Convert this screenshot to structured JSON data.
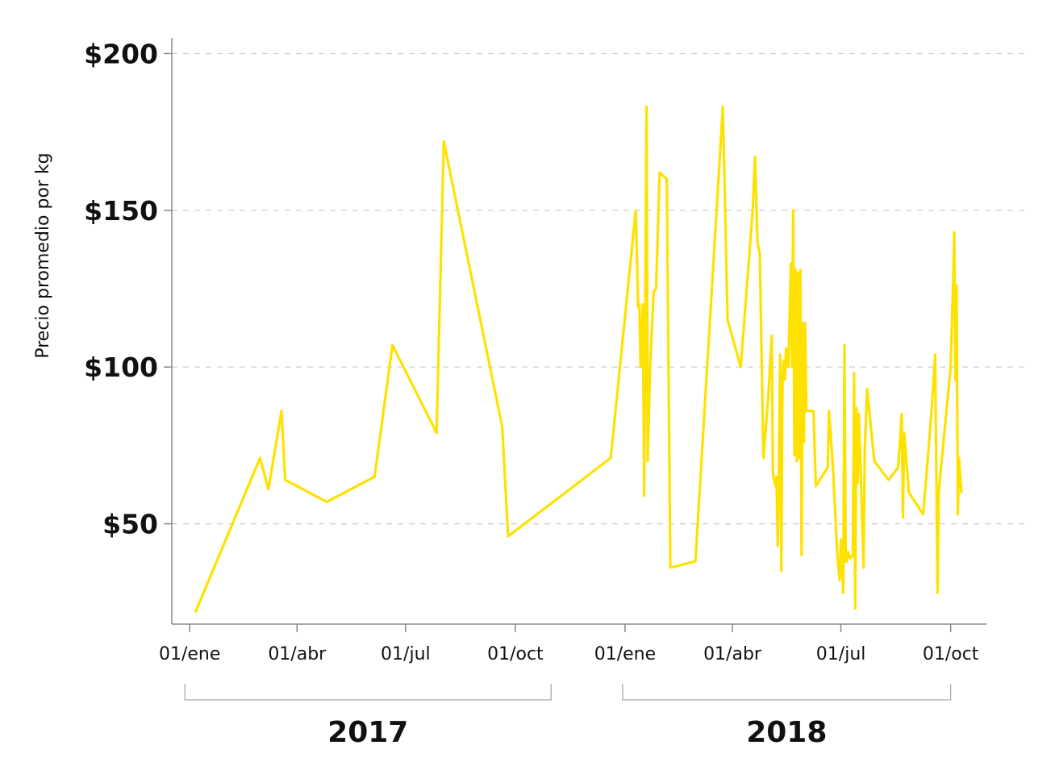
{
  "chart_data": {
    "type": "line",
    "title": "",
    "xlabel": "",
    "ylabel": "Precio promedio por kg",
    "y_ticks": [
      {
        "value": 200,
        "label": "$200"
      },
      {
        "value": 150,
        "label": "$150"
      },
      {
        "value": 100,
        "label": "$100"
      },
      {
        "value": 50,
        "label": "$50"
      }
    ],
    "ylim": [
      18,
      205
    ],
    "xlim": [
      "2016-12-17",
      "2018-10-31"
    ],
    "x_ticks": [
      {
        "date": "2017-01-01",
        "label": "01/ene"
      },
      {
        "date": "2017-04-01",
        "label": "01/abr"
      },
      {
        "date": "2017-07-01",
        "label": "01/jul"
      },
      {
        "date": "2017-10-01",
        "label": "01/oct"
      },
      {
        "date": "2018-01-01",
        "label": "01/ene"
      },
      {
        "date": "2018-04-01",
        "label": "01/abr"
      },
      {
        "date": "2018-07-01",
        "label": "01/jul"
      },
      {
        "date": "2018-10-01",
        "label": "01/oct"
      }
    ],
    "year_groups": [
      {
        "label": "2017",
        "start": "2016-12-28",
        "end": "2017-10-31"
      },
      {
        "label": "2018",
        "start": "2017-12-30",
        "end": "2018-10-01"
      }
    ],
    "grid": "horizontal-dashed",
    "line_color": "#FFE100",
    "series": [
      {
        "points": [
          [
            "2017-01-06",
            22
          ],
          [
            "2017-03-01",
            71
          ],
          [
            "2017-03-08",
            61
          ],
          [
            "2017-03-19",
            86
          ],
          [
            "2017-03-22",
            64
          ],
          [
            "2017-04-26",
            57
          ],
          [
            "2017-06-05",
            65
          ],
          [
            "2017-06-20",
            107
          ],
          [
            "2017-07-27",
            79
          ],
          [
            "2017-08-02",
            172
          ],
          [
            "2017-09-20",
            81
          ],
          [
            "2017-09-25",
            46
          ],
          [
            "2017-12-20",
            71
          ],
          [
            "2018-01-10",
            150
          ],
          [
            "2018-01-12",
            119
          ],
          [
            "2018-01-13",
            120
          ],
          [
            "2018-01-14",
            100
          ],
          [
            "2018-01-16",
            120
          ],
          [
            "2018-01-17",
            59
          ],
          [
            "2018-01-19",
            183
          ],
          [
            "2018-01-20",
            70
          ],
          [
            "2018-01-22",
            100
          ],
          [
            "2018-01-25",
            124
          ],
          [
            "2018-01-27",
            125
          ],
          [
            "2018-01-30",
            162
          ],
          [
            "2018-02-05",
            160
          ],
          [
            "2018-02-08",
            36
          ],
          [
            "2018-03-01",
            38
          ],
          [
            "2018-03-24",
            183
          ],
          [
            "2018-03-28",
            115
          ],
          [
            "2018-04-08",
            100
          ],
          [
            "2018-04-18",
            150
          ],
          [
            "2018-04-20",
            167
          ],
          [
            "2018-04-22",
            140
          ],
          [
            "2018-04-24",
            136
          ],
          [
            "2018-04-27",
            71
          ],
          [
            "2018-05-01",
            90
          ],
          [
            "2018-05-04",
            110
          ],
          [
            "2018-05-05",
            66
          ],
          [
            "2018-05-07",
            62
          ],
          [
            "2018-05-08",
            65
          ],
          [
            "2018-05-09",
            43
          ],
          [
            "2018-05-10",
            66
          ],
          [
            "2018-05-11",
            104
          ],
          [
            "2018-05-12",
            35
          ],
          [
            "2018-05-13",
            95
          ],
          [
            "2018-05-14",
            102
          ],
          [
            "2018-05-15",
            96
          ],
          [
            "2018-05-16",
            106
          ],
          [
            "2018-05-18",
            100
          ],
          [
            "2018-05-20",
            133
          ],
          [
            "2018-05-21",
            100
          ],
          [
            "2018-05-22",
            150
          ],
          [
            "2018-05-23",
            72
          ],
          [
            "2018-05-24",
            131
          ],
          [
            "2018-05-25",
            70
          ],
          [
            "2018-05-26",
            130
          ],
          [
            "2018-05-27",
            71
          ],
          [
            "2018-05-28",
            131
          ],
          [
            "2018-05-29",
            40
          ],
          [
            "2018-05-30",
            114
          ],
          [
            "2018-05-31",
            76
          ],
          [
            "2018-06-01",
            114
          ],
          [
            "2018-06-02",
            86
          ],
          [
            "2018-06-08",
            86
          ],
          [
            "2018-06-10",
            62
          ],
          [
            "2018-06-20",
            68
          ],
          [
            "2018-06-21",
            86
          ],
          [
            "2018-06-24",
            70
          ],
          [
            "2018-06-28",
            40
          ],
          [
            "2018-06-30",
            32
          ],
          [
            "2018-07-01",
            45
          ],
          [
            "2018-07-02",
            38
          ],
          [
            "2018-07-03",
            28
          ],
          [
            "2018-07-04",
            107
          ],
          [
            "2018-07-05",
            38
          ],
          [
            "2018-07-06",
            38
          ],
          [
            "2018-07-07",
            41
          ],
          [
            "2018-07-09",
            39
          ],
          [
            "2018-07-11",
            40
          ],
          [
            "2018-07-12",
            98
          ],
          [
            "2018-07-13",
            23
          ],
          [
            "2018-07-14",
            87
          ],
          [
            "2018-07-15",
            63
          ],
          [
            "2018-07-16",
            85
          ],
          [
            "2018-07-18",
            62
          ],
          [
            "2018-07-20",
            36
          ],
          [
            "2018-07-21",
            74
          ],
          [
            "2018-07-23",
            93
          ],
          [
            "2018-07-29",
            70
          ],
          [
            "2018-08-10",
            64
          ],
          [
            "2018-08-18",
            68
          ],
          [
            "2018-08-20",
            79
          ],
          [
            "2018-08-21",
            85
          ],
          [
            "2018-08-22",
            52
          ],
          [
            "2018-08-23",
            79
          ],
          [
            "2018-08-27",
            60
          ],
          [
            "2018-09-08",
            53
          ],
          [
            "2018-09-15",
            86
          ],
          [
            "2018-09-18",
            104
          ],
          [
            "2018-09-20",
            28
          ],
          [
            "2018-09-21",
            60
          ],
          [
            "2018-10-01",
            100
          ],
          [
            "2018-10-03",
            126
          ],
          [
            "2018-10-04",
            143
          ],
          [
            "2018-10-05",
            96
          ],
          [
            "2018-10-06",
            126
          ],
          [
            "2018-10-07",
            53
          ],
          [
            "2018-10-08",
            71
          ],
          [
            "2018-10-10",
            60
          ]
        ]
      }
    ]
  }
}
